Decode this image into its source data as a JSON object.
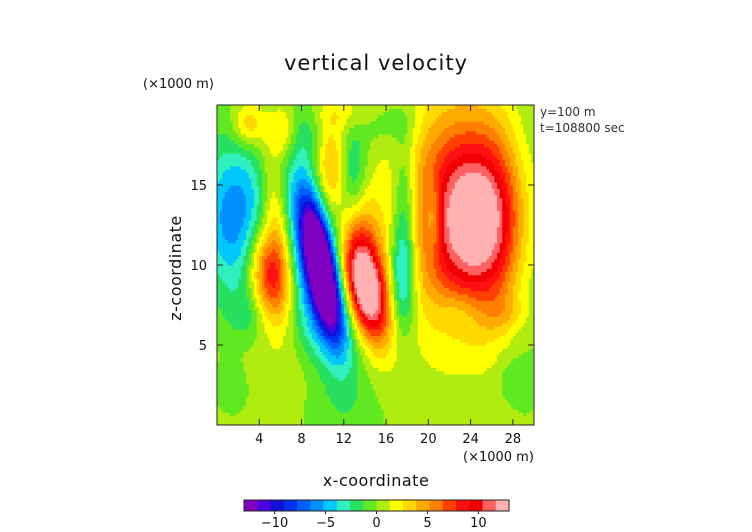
{
  "chart_data": {
    "type": "heatmap",
    "title": "vertical velocity",
    "xlabel": "x-coordinate",
    "ylabel": "z-coordinate",
    "x_unit": "(×1000 m)",
    "y_unit": "(×1000 m)",
    "xlim": [
      0,
      30
    ],
    "ylim": [
      0,
      20
    ],
    "x_ticks": [
      4,
      8,
      12,
      16,
      20,
      24,
      28
    ],
    "y_ticks": [
      5,
      10,
      15
    ],
    "annotations": [
      "y=100 m",
      "t=108800 sec"
    ],
    "colorbar": {
      "range": [
        -13,
        13
      ],
      "ticks": [
        -10,
        -5,
        0,
        5,
        10
      ],
      "colors": [
        "#8000c0",
        "#5000e0",
        "#1010d8",
        "#0030f0",
        "#0060ff",
        "#0090ff",
        "#00c8ff",
        "#30f0c0",
        "#28e060",
        "#60e820",
        "#b0ec10",
        "#ffff00",
        "#ffd800",
        "#ffaa00",
        "#ff8000",
        "#ff4000",
        "#ff1010",
        "#f00000",
        "#ff6060",
        "#ffb0b0"
      ]
    },
    "background_value": 0.2,
    "features": [
      {
        "x": 9.8,
        "z": 10.0,
        "w": -15.5,
        "sx": 0.9,
        "sz": 3.0,
        "angle_deg": -18
      },
      {
        "x": 9.8,
        "z": 9.0,
        "w": -7.0,
        "sx": 2.2,
        "sz": 5.0,
        "angle_deg": -18
      },
      {
        "x": 1.8,
        "z": 13.0,
        "w": -6.5,
        "sx": 2.4,
        "sz": 3.3,
        "angle_deg": 0
      },
      {
        "x": 5.0,
        "z": 9.4,
        "w": 9.5,
        "sx": 1.3,
        "sz": 2.2,
        "angle_deg": -12
      },
      {
        "x": 5.6,
        "z": 13.2,
        "w": 4.5,
        "sx": 0.9,
        "sz": 3.2,
        "angle_deg": -10
      },
      {
        "x": 14.0,
        "z": 8.5,
        "w": 13.0,
        "sx": 1.3,
        "sz": 2.4,
        "angle_deg": -25
      },
      {
        "x": 13.8,
        "z": 11.0,
        "w": 5.5,
        "sx": 1.4,
        "sz": 3.2,
        "angle_deg": -10
      },
      {
        "x": 17.5,
        "z": 9.0,
        "w": -5.0,
        "sx": 0.9,
        "sz": 2.4,
        "angle_deg": 0
      },
      {
        "x": 17.8,
        "z": 13.5,
        "w": -4.0,
        "sx": 0.8,
        "sz": 3.5,
        "angle_deg": 0
      },
      {
        "x": 10.8,
        "z": 16.0,
        "w": 5.0,
        "sx": 1.1,
        "sz": 2.0,
        "angle_deg": 0
      },
      {
        "x": 12.8,
        "z": 15.5,
        "w": -4.5,
        "sx": 1.0,
        "sz": 2.2,
        "angle_deg": 0
      },
      {
        "x": 24.5,
        "z": 12.8,
        "w": 10.0,
        "sx": 3.0,
        "sz": 3.6,
        "angle_deg": 0
      },
      {
        "x": 22.0,
        "z": 13.5,
        "w": 5.0,
        "sx": 3.8,
        "sz": 5.5,
        "angle_deg": 0
      },
      {
        "x": 20.5,
        "z": 13.0,
        "w": -3.5,
        "sx": 0.6,
        "sz": 1.6,
        "angle_deg": 0
      },
      {
        "x": 27.0,
        "z": 12.5,
        "w": 2.0,
        "sx": 2.0,
        "sz": 5.0,
        "angle_deg": 0
      },
      {
        "x": 29.0,
        "z": 12.0,
        "w": -1.8,
        "sx": 1.5,
        "sz": 6.0,
        "angle_deg": 0
      },
      {
        "x": 3.0,
        "z": 18.8,
        "w": 4.0,
        "sx": 1.0,
        "sz": 1.0,
        "angle_deg": 0
      },
      {
        "x": 6.3,
        "z": 18.3,
        "w": 4.0,
        "sx": 1.0,
        "sz": 1.3,
        "angle_deg": 0
      },
      {
        "x": 8.0,
        "z": 18.5,
        "w": -2.0,
        "sx": 1.5,
        "sz": 1.5,
        "angle_deg": 0
      },
      {
        "x": 16.0,
        "z": 19.0,
        "w": -1.8,
        "sx": 2.0,
        "sz": 1.0,
        "angle_deg": 0
      },
      {
        "x": 12.0,
        "z": 19.5,
        "w": 2.0,
        "sx": 2.5,
        "sz": 0.8,
        "angle_deg": 0
      },
      {
        "x": 3.0,
        "z": 7.0,
        "w": -1.8,
        "sx": 1.5,
        "sz": 1.2,
        "angle_deg": 0
      },
      {
        "x": 23.0,
        "z": 7.2,
        "w": -1.7,
        "sx": 1.5,
        "sz": 1.0,
        "angle_deg": 0
      },
      {
        "x": 27.5,
        "z": 7.0,
        "w": 1.6,
        "sx": 1.5,
        "sz": 0.8,
        "angle_deg": 0
      },
      {
        "x": 1.5,
        "z": 2.5,
        "w": -1.2,
        "sx": 1.0,
        "sz": 1.0,
        "angle_deg": 0
      },
      {
        "x": 27.8,
        "z": 3.0,
        "w": -1.2,
        "sx": 1.0,
        "sz": 1.0,
        "angle_deg": 0
      },
      {
        "x": 9.0,
        "z": 3.5,
        "w": 1.2,
        "sx": 4.0,
        "sz": 1.5,
        "angle_deg": 0
      }
    ]
  }
}
